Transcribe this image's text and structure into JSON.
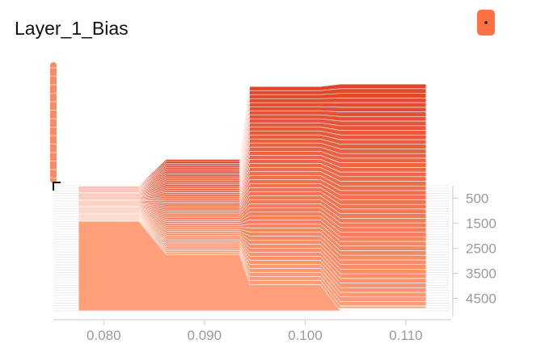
{
  "title": "Layer_1_Bias",
  "chart_data": {
    "type": "histogram-ridgeline",
    "title": "Layer_1_Bias",
    "xlabel": "",
    "ylabel": "",
    "x_ticks": [
      "0.080",
      "0.090",
      "0.100",
      "0.110"
    ],
    "x_tick_values": [
      0.08,
      0.09,
      0.1,
      0.11
    ],
    "xlim": [
      0.075,
      0.1145
    ],
    "step_ticks": [
      "500",
      "1500",
      "2500",
      "3500",
      "4500"
    ],
    "step_tick_values": [
      500,
      1500,
      2500,
      3500,
      4500
    ],
    "steps_range": [
      0,
      5000
    ],
    "num_series": 50,
    "bins": [
      {
        "x0": 0.0775,
        "x1": 0.0835
      },
      {
        "x0": 0.0862,
        "x1": 0.0935
      },
      {
        "x0": 0.0945,
        "x1": 0.1015
      },
      {
        "x0": 0.1035,
        "x1": 0.112
      }
    ],
    "heights_first_step": [
      0,
      0.22,
      0.83,
      0.85
    ],
    "heights_last_step": [
      0.75,
      0.47,
      0.22,
      0
    ]
  },
  "colors": {
    "series_far": "#e0452a",
    "series_near": "#ffa07a",
    "outline": "#fff3ee",
    "axis": "#cccccc",
    "tick_text": "#9a9a9a",
    "menu_button": "#ff7043"
  }
}
